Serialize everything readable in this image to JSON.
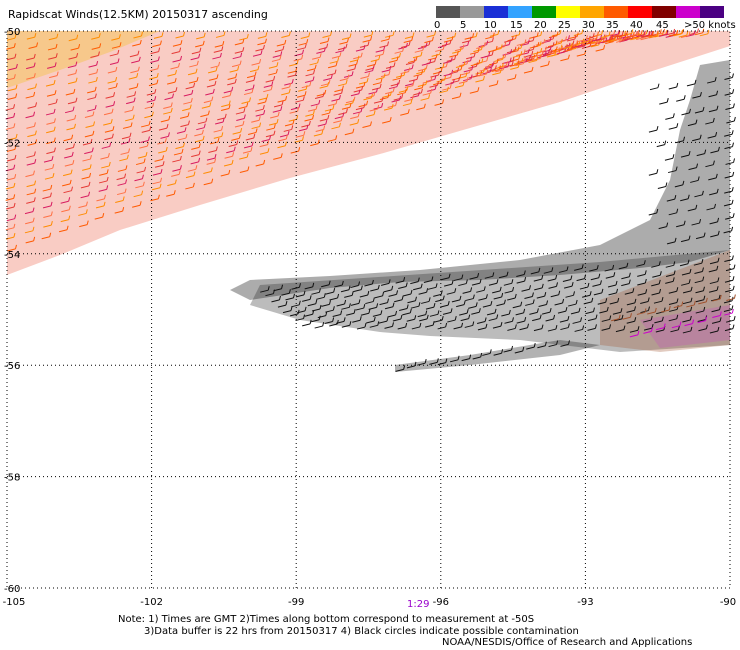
{
  "title": "Rapidscat Winds(12.5KM) 20150317 ascending",
  "legend": {
    "ticks": [
      "0",
      "5",
      "10",
      "15",
      "20",
      "25",
      "30",
      "35",
      "40",
      "45",
      ">50 knots"
    ],
    "colors": [
      "#555555",
      "#999999",
      "#1a2fd6",
      "#33a3ff",
      "#009900",
      "#ffff00",
      "#ffa500",
      "#ff5a00",
      "#ff0000",
      "#800000",
      "#cc00cc",
      "#4b0082"
    ]
  },
  "axes": {
    "x_ticks": [
      "-105",
      "-102",
      "-99",
      "-96",
      "-93",
      "-90"
    ],
    "y_ticks": [
      "-50",
      "-52",
      "-54",
      "-56",
      "-58",
      "-60"
    ],
    "x_range": [
      -105,
      -90
    ],
    "y_range": [
      -60,
      -50
    ],
    "grid": "dotted"
  },
  "time_label": "1:29",
  "notes": {
    "line1": "Note: 1) Times are GMT 2)Times along bottom correspond to measurement at -50S",
    "line2": "3)Data buffer is 22 hrs from 20150317 4) Black circles indicate possible contamination"
  },
  "credit": "NOAA/NESDIS/Office of Research and Applications"
}
